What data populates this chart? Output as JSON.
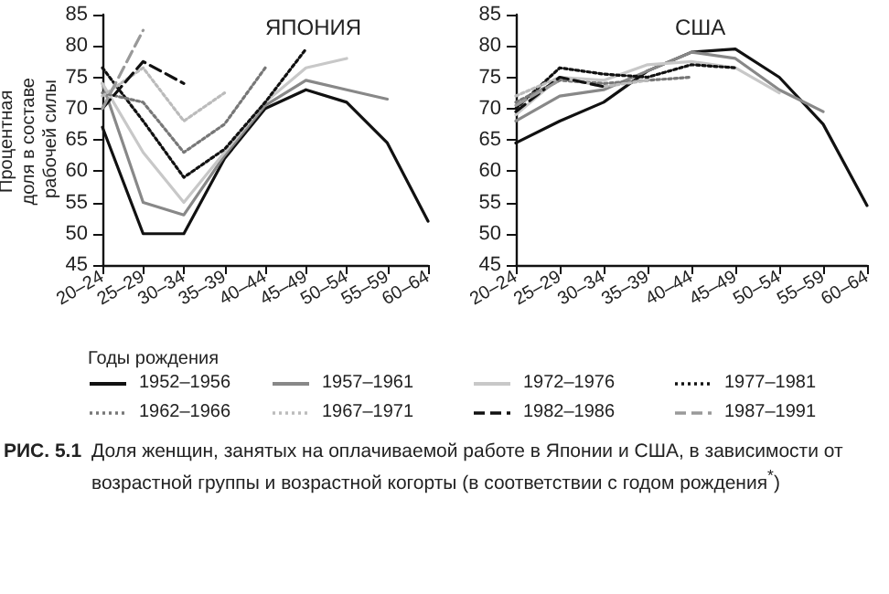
{
  "chart_data": [
    {
      "type": "line",
      "title": "ЯПОНИЯ",
      "ylabel": "Процентная доля в составе рабочей силы",
      "legend_title": "Годы рождения",
      "legend": "bottom",
      "marker": "none",
      "grid": false,
      "categories": [
        "20–24",
        "25–29",
        "30–34",
        "35–39",
        "40–44",
        "45–49",
        "50–54",
        "55–59",
        "60–64"
      ],
      "ylim": [
        45,
        85
      ],
      "yticks": [
        45,
        50,
        55,
        60,
        65,
        70,
        75,
        80,
        85
      ],
      "annotations": [
        "РИС. 5.1",
        "Доля женщин, занятых на оплачиваемой работе в Японии и США, в зависимости от возрастной группы и возрастной когорты (в соответствии с годом рождения$^{*}$)"
      ],
      "series": [
        {
          "name": "1952–1956",
          "color": "#111111",
          "line_style": "solid",
          "values": [
            67,
            50,
            50,
            62,
            70,
            73,
            71,
            64.5,
            52
          ]
        },
        {
          "name": "1957–1961",
          "color": "#888888",
          "line_style": "solid",
          "values": [
            74,
            55,
            53,
            62.5,
            70.5,
            74.5,
            73,
            71.5,
            null
          ]
        },
        {
          "name": "1972–1976",
          "color": "#c8c8c8",
          "line_style": "solid",
          "values": [
            74,
            63,
            55,
            63,
            71,
            76.5,
            78,
            null,
            null
          ]
        },
        {
          "name": "1977–1981",
          "color": "#111111",
          "line_style": "dotted",
          "values": [
            76.5,
            68,
            59,
            63.5,
            71,
            79.5,
            null,
            null,
            null
          ]
        },
        {
          "name": "1962–1966",
          "color": "#777777",
          "line_style": "dotted",
          "values": [
            72.5,
            71,
            63,
            67.5,
            76.5,
            null,
            null,
            null,
            null
          ]
        },
        {
          "name": "1967–1971",
          "color": "#bbbbbb",
          "line_style": "dotted",
          "values": [
            72,
            76.5,
            68,
            72.5,
            null,
            null,
            null,
            null,
            null
          ]
        },
        {
          "name": "1982–1986",
          "color": "#111111",
          "line_style": "dashed",
          "values": [
            70,
            77.5,
            74,
            null,
            null,
            null,
            null,
            null,
            null
          ]
        },
        {
          "name": "1987–1991",
          "color": "#999999",
          "line_style": "dashed",
          "values": [
            70,
            82.5,
            null,
            null,
            null,
            null,
            null,
            null,
            null
          ]
        }
      ]
    },
    {
      "type": "line",
      "title": "США",
      "legend": "bottom",
      "marker": "none",
      "grid": false,
      "categories": [
        "20–24",
        "25–29",
        "30–34",
        "35–39",
        "40–44",
        "45–49",
        "50–54",
        "55–59",
        "60–64"
      ],
      "ylim": [
        45,
        85
      ],
      "yticks": [
        45,
        50,
        55,
        60,
        65,
        70,
        75,
        80,
        85
      ],
      "series": [
        {
          "name": "1952–1956",
          "color": "#111111",
          "line_style": "solid",
          "values": [
            64.5,
            68,
            71,
            76,
            79,
            79.5,
            75,
            67.5,
            54.5
          ]
        },
        {
          "name": "1957–1961",
          "color": "#888888",
          "line_style": "solid",
          "values": [
            68,
            72,
            73,
            76,
            79,
            78,
            73,
            69.5,
            null
          ]
        },
        {
          "name": "1972–1976",
          "color": "#c8c8c8",
          "line_style": "solid",
          "values": [
            69,
            75,
            74.5,
            77,
            77.5,
            76.5,
            72.5,
            null,
            null
          ]
        },
        {
          "name": "1977–1981",
          "color": "#111111",
          "line_style": "dotted",
          "values": [
            70,
            76.5,
            75.5,
            75,
            77,
            76.5,
            null,
            null,
            null
          ]
        },
        {
          "name": "1962–1966",
          "color": "#777777",
          "line_style": "dotted",
          "values": [
            71,
            74.5,
            74,
            74.5,
            75,
            null,
            null,
            null,
            null
          ]
        },
        {
          "name": "1967–1971",
          "color": "#bbbbbb",
          "line_style": "dotted",
          "values": [
            72,
            75,
            73.5,
            74.5,
            null,
            null,
            null,
            null,
            null
          ]
        },
        {
          "name": "1982–1986",
          "color": "#111111",
          "line_style": "dashed",
          "values": [
            69.5,
            75,
            73.5,
            null,
            null,
            null,
            null,
            null,
            null
          ]
        },
        {
          "name": "1987–1991",
          "color": "#999999",
          "line_style": "dashed",
          "values": [
            70.5,
            74.5,
            null,
            null,
            null,
            null,
            null,
            null,
            null
          ]
        }
      ]
    }
  ]
}
